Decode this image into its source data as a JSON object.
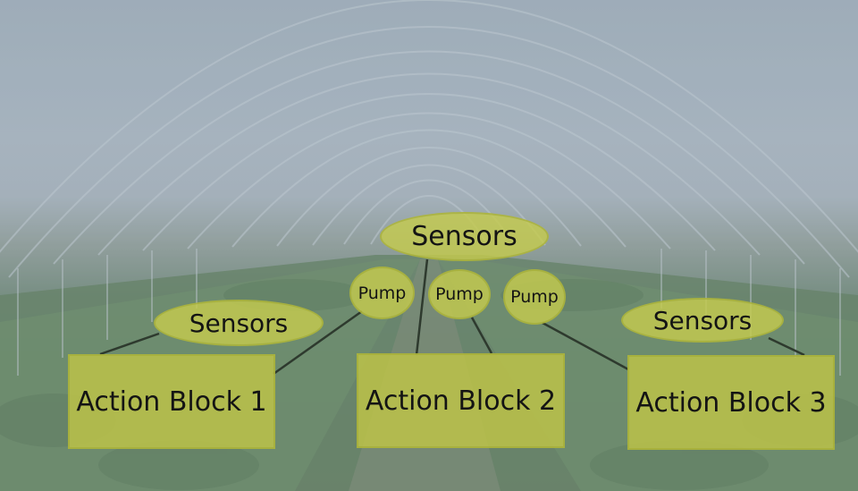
{
  "diagram": {
    "sensors_top": "Sensors",
    "sensors_left": "Sensors",
    "sensors_right": "Sensors",
    "pump_1": "Pump",
    "pump_2": "Pump",
    "pump_3": "Pump",
    "action_block_1": "Action Block 1",
    "action_block_2": "Action Block 2",
    "action_block_3": "Action Block 3"
  },
  "colors": {
    "node_fill": "#c5cb4e",
    "connector": "#2b3a2b"
  }
}
